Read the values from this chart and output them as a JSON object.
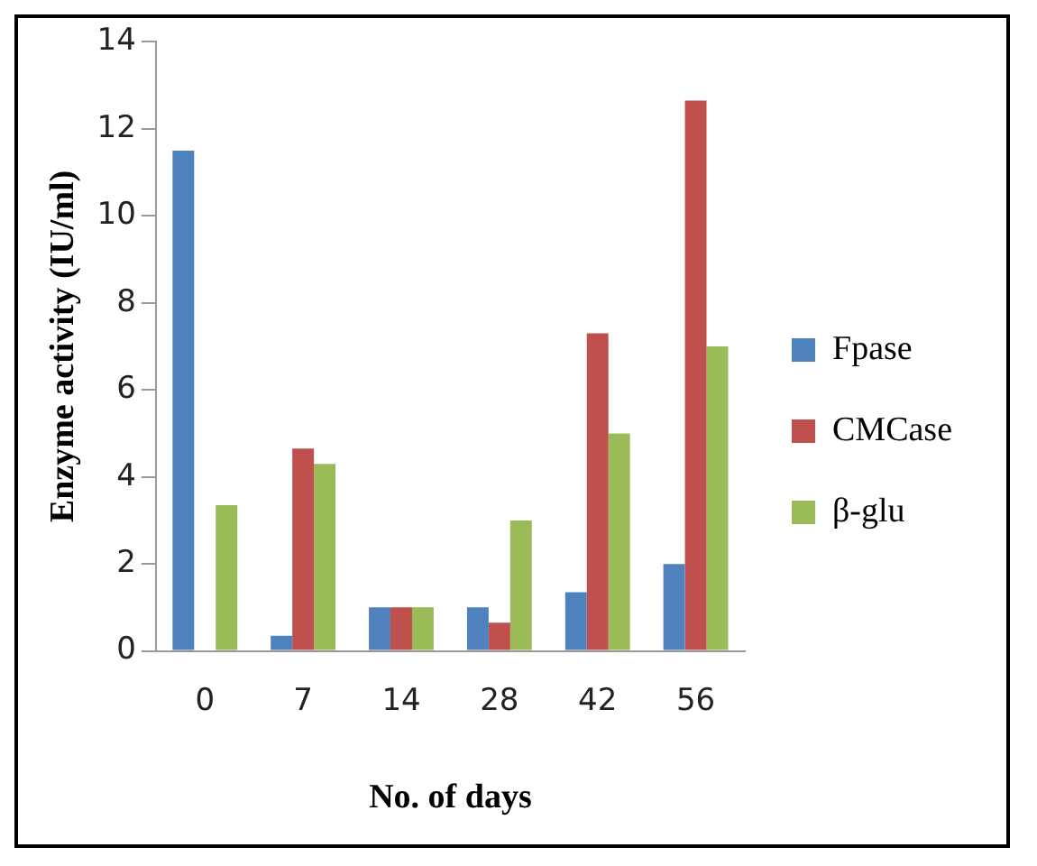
{
  "chart_data": {
    "type": "bar",
    "xlabel": "No. of days",
    "ylabel": "Enzyme activity (IU/ml)",
    "categories": [
      "0",
      "7",
      "14",
      "28",
      "42",
      "56"
    ],
    "series": [
      {
        "name": "Fpase",
        "color": "#4f81bd",
        "values": [
          11.5,
          0.35,
          1,
          1,
          1.35,
          2
        ]
      },
      {
        "name": "CMCase",
        "color": "#c0504d",
        "values": [
          0,
          4.65,
          1,
          0.65,
          7.3,
          12.65
        ]
      },
      {
        "name": "β-glu",
        "color": "#9bbb59",
        "values": [
          3.35,
          4.3,
          1,
          3,
          5,
          7
        ]
      }
    ],
    "ylim": [
      0,
      14
    ],
    "yticks": [
      0,
      2,
      4,
      6,
      8,
      10,
      12,
      14
    ],
    "grid": false,
    "legend": "right"
  }
}
